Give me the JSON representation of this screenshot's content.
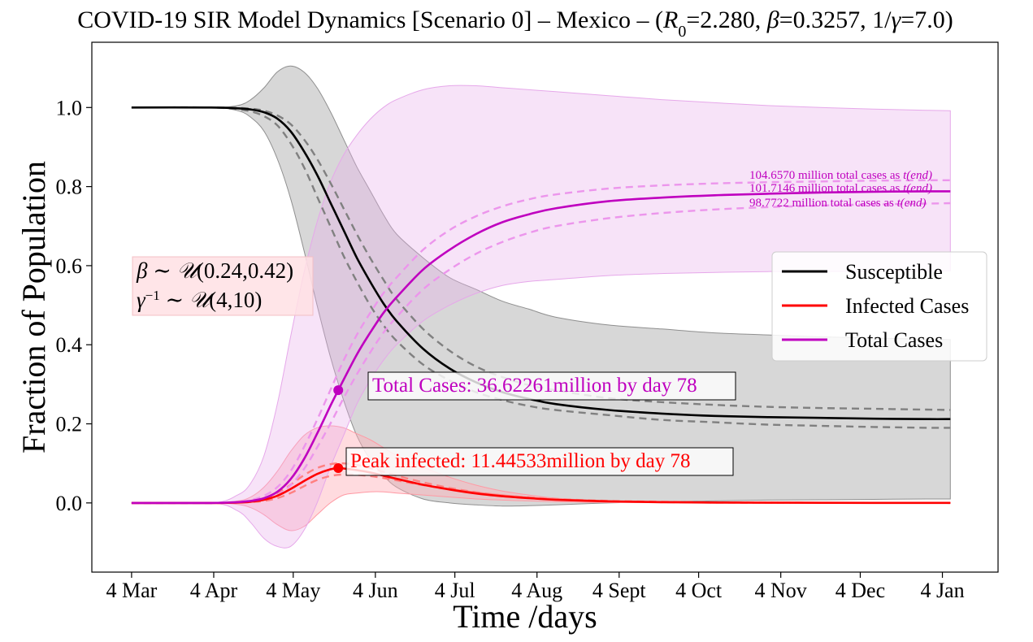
{
  "chart_data": {
    "type": "line",
    "title_parts": {
      "prefix": "COVID-19 SIR Model Dynamics [Scenario 0] – Mexico – (",
      "r0_symbol": "R",
      "r0_sub": "0",
      "r0_value": "=2.280, ",
      "beta_symbol": "β",
      "beta_value": "=0.3257, 1/",
      "gamma_symbol": "γ",
      "gamma_value": "=7.0)"
    },
    "xlabel": "Time /days",
    "ylabel": "Fraction of Population",
    "x_axis": {
      "ticks": [
        {
          "label": "4 Mar",
          "day": 0
        },
        {
          "label": "4 Apr",
          "day": 31
        },
        {
          "label": "4 May",
          "day": 61
        },
        {
          "label": "4 Jun",
          "day": 92
        },
        {
          "label": "4 Jul",
          "day": 122
        },
        {
          "label": "4 Aug",
          "day": 153
        },
        {
          "label": "4 Sept",
          "day": 184
        },
        {
          "label": "4 Oct",
          "day": 214
        },
        {
          "label": "4 Nov",
          "day": 245
        },
        {
          "label": "4 Dec",
          "day": 275
        },
        {
          "label": "4 Jan",
          "day": 306
        }
      ],
      "xlim": [
        -15,
        327
      ]
    },
    "y_axis": {
      "ticks": [
        "0.0",
        "0.2",
        "0.4",
        "0.6",
        "0.8",
        "1.0"
      ],
      "tick_values": [
        0,
        0.2,
        0.4,
        0.6,
        0.8,
        1.0
      ],
      "ylim": [
        -0.175,
        1.165
      ]
    },
    "grid": false,
    "legend": {
      "position": "center-right",
      "entries": [
        {
          "label": "Susceptible",
          "color": "#000000"
        },
        {
          "label": "Infected Cases",
          "color": "#ff0000"
        },
        {
          "label": "Total Cases",
          "color": "#bf00bf"
        }
      ]
    },
    "parameter_box": {
      "line1": {
        "sym": "β",
        "rest": " ∼ ",
        "dist": "𝒰",
        "args": "(0.24,0.42)"
      },
      "line2": {
        "sym": "γ",
        "sup": "−1",
        "rest": " ∼ ",
        "dist": "𝒰",
        "args": "(4,10)"
      }
    },
    "annotations": {
      "total_cases": {
        "text": "Total Cases: 36.62261million by day 78",
        "day": 78,
        "value": 0.285
      },
      "peak_infected": {
        "text": "Peak infected: 11.44533million by day 78",
        "day": 78,
        "value": 0.088
      },
      "end_totals": [
        {
          "text": "104.6570 million total cases as ",
          "tend": "t(end)",
          "value": 0.81
        },
        {
          "text": "101.7146 million total cases as ",
          "tend": "t(end)",
          "value": 0.785
        },
        {
          "text": "98.7722 million total cases as ",
          "tend": "t(end)",
          "value": 0.755
        }
      ]
    },
    "series": [
      {
        "name": "Susceptible",
        "color": "#000000",
        "kind": "main",
        "x": [
          0,
          30,
          40,
          45,
          50,
          55,
          60,
          65,
          70,
          75,
          80,
          85,
          90,
          95,
          100,
          110,
          120,
          130,
          140,
          150,
          160,
          180,
          200,
          220,
          240,
          260,
          280,
          300,
          309
        ],
        "y": [
          1.0,
          1.0,
          0.998,
          0.995,
          0.988,
          0.972,
          0.94,
          0.89,
          0.83,
          0.76,
          0.69,
          0.62,
          0.56,
          0.505,
          0.46,
          0.39,
          0.34,
          0.305,
          0.28,
          0.263,
          0.25,
          0.235,
          0.226,
          0.22,
          0.217,
          0.215,
          0.213,
          0.212,
          0.212
        ]
      },
      {
        "name": "",
        "color": "#808080",
        "kind": "dashed",
        "x": [
          0,
          30,
          40,
          45,
          50,
          55,
          60,
          65,
          70,
          75,
          80,
          85,
          90,
          95,
          100,
          110,
          120,
          130,
          140,
          150,
          160,
          180,
          200,
          220,
          240,
          260,
          280,
          300,
          309
        ],
        "y": [
          1.0,
          1.0,
          0.995,
          0.99,
          0.978,
          0.955,
          0.91,
          0.85,
          0.775,
          0.7,
          0.625,
          0.56,
          0.5,
          0.45,
          0.41,
          0.35,
          0.31,
          0.28,
          0.26,
          0.245,
          0.235,
          0.222,
          0.21,
          0.204,
          0.198,
          0.195,
          0.192,
          0.19,
          0.19
        ]
      },
      {
        "name": "",
        "color": "#808080",
        "kind": "dashed",
        "x": [
          0,
          30,
          40,
          45,
          50,
          55,
          60,
          65,
          70,
          75,
          80,
          85,
          90,
          95,
          100,
          110,
          120,
          130,
          140,
          150,
          160,
          180,
          200,
          220,
          240,
          260,
          280,
          300,
          309
        ],
        "y": [
          1.0,
          1.0,
          0.999,
          0.997,
          0.992,
          0.98,
          0.958,
          0.92,
          0.87,
          0.81,
          0.745,
          0.68,
          0.62,
          0.565,
          0.515,
          0.44,
          0.385,
          0.345,
          0.318,
          0.298,
          0.285,
          0.265,
          0.255,
          0.248,
          0.243,
          0.24,
          0.238,
          0.236,
          0.235
        ]
      },
      {
        "name": "Infected Cases",
        "color": "#ff0000",
        "kind": "main",
        "x": [
          0,
          30,
          40,
          45,
          50,
          55,
          60,
          65,
          70,
          75,
          78,
          80,
          85,
          90,
          95,
          100,
          110,
          120,
          130,
          140,
          150,
          160,
          180,
          200,
          220,
          250,
          280,
          309
        ],
        "y": [
          0,
          0,
          0.001,
          0.003,
          0.008,
          0.018,
          0.035,
          0.055,
          0.073,
          0.085,
          0.088,
          0.087,
          0.083,
          0.077,
          0.069,
          0.061,
          0.046,
          0.034,
          0.024,
          0.017,
          0.012,
          0.008,
          0.004,
          0.002,
          0.001,
          0.0005,
          0.0002,
          0.0001
        ]
      },
      {
        "name": "",
        "color": "#ff8080",
        "kind": "dashed",
        "x": [
          0,
          30,
          40,
          45,
          50,
          55,
          60,
          65,
          70,
          75,
          80,
          85,
          90,
          95,
          100,
          110,
          120,
          130,
          140,
          150,
          160,
          180,
          200,
          220,
          250,
          280,
          309
        ],
        "y": [
          0,
          0,
          0.0005,
          0.002,
          0.005,
          0.012,
          0.025,
          0.042,
          0.058,
          0.068,
          0.072,
          0.071,
          0.068,
          0.063,
          0.057,
          0.045,
          0.035,
          0.026,
          0.019,
          0.014,
          0.01,
          0.005,
          0.003,
          0.0015,
          0.0006,
          0.0002,
          0.0001
        ]
      },
      {
        "name": "",
        "color": "#ff8080",
        "kind": "dashed",
        "x": [
          0,
          30,
          40,
          45,
          50,
          55,
          60,
          65,
          70,
          75,
          80,
          85,
          90,
          95,
          100,
          110,
          120,
          130,
          140,
          150,
          160,
          180,
          200,
          220,
          250,
          280,
          309
        ],
        "y": [
          0,
          0,
          0.002,
          0.005,
          0.012,
          0.025,
          0.046,
          0.07,
          0.088,
          0.098,
          0.1,
          0.096,
          0.088,
          0.079,
          0.069,
          0.052,
          0.038,
          0.027,
          0.019,
          0.013,
          0.009,
          0.004,
          0.002,
          0.001,
          0.0004,
          0.0001,
          0.0
        ]
      },
      {
        "name": "Total Cases",
        "color": "#bf00bf",
        "kind": "main",
        "x": [
          0,
          30,
          40,
          45,
          50,
          55,
          60,
          65,
          70,
          75,
          78,
          85,
          90,
          95,
          100,
          110,
          120,
          130,
          140,
          150,
          160,
          180,
          200,
          220,
          240,
          260,
          280,
          300,
          309
        ],
        "y": [
          0,
          0,
          0.002,
          0.005,
          0.012,
          0.028,
          0.06,
          0.11,
          0.175,
          0.245,
          0.285,
          0.375,
          0.43,
          0.48,
          0.52,
          0.59,
          0.64,
          0.68,
          0.71,
          0.73,
          0.745,
          0.763,
          0.772,
          0.778,
          0.782,
          0.785,
          0.787,
          0.788,
          0.788
        ]
      },
      {
        "name": "",
        "color": "#ec96ec",
        "kind": "dashed",
        "x": [
          0,
          30,
          40,
          45,
          50,
          55,
          60,
          65,
          70,
          75,
          80,
          85,
          90,
          95,
          100,
          110,
          120,
          130,
          140,
          150,
          160,
          180,
          200,
          220,
          240,
          260,
          280,
          300,
          309
        ],
        "y": [
          0,
          0,
          0.001,
          0.003,
          0.008,
          0.02,
          0.045,
          0.085,
          0.14,
          0.2,
          0.265,
          0.325,
          0.38,
          0.43,
          0.47,
          0.54,
          0.59,
          0.63,
          0.66,
          0.683,
          0.7,
          0.72,
          0.733,
          0.742,
          0.748,
          0.752,
          0.755,
          0.757,
          0.758
        ]
      },
      {
        "name": "",
        "color": "#ec96ec",
        "kind": "dashed",
        "x": [
          0,
          30,
          40,
          45,
          50,
          55,
          60,
          65,
          70,
          75,
          80,
          85,
          90,
          95,
          100,
          110,
          120,
          130,
          140,
          150,
          160,
          180,
          200,
          220,
          240,
          260,
          280,
          300,
          309
        ],
        "y": [
          0,
          0,
          0.003,
          0.007,
          0.018,
          0.04,
          0.08,
          0.14,
          0.21,
          0.285,
          0.36,
          0.425,
          0.48,
          0.53,
          0.57,
          0.64,
          0.69,
          0.725,
          0.75,
          0.768,
          0.78,
          0.795,
          0.803,
          0.808,
          0.811,
          0.813,
          0.815,
          0.816,
          0.816
        ]
      }
    ],
    "bands": [
      {
        "name": "Susceptible",
        "fill": "#b0b0b0",
        "opacity": 0.5,
        "stroke": "#8f8f8f",
        "x": [
          0,
          30,
          40,
          45,
          50,
          55,
          60,
          65,
          70,
          75,
          80,
          85,
          90,
          95,
          100,
          110,
          120,
          130,
          140,
          150,
          160,
          180,
          200,
          220,
          240,
          260,
          280,
          300,
          309
        ],
        "upper": [
          1.0,
          1.0,
          1.005,
          1.02,
          1.05,
          1.09,
          1.105,
          1.09,
          1.05,
          0.99,
          0.92,
          0.85,
          0.79,
          0.73,
          0.68,
          0.62,
          0.57,
          0.54,
          0.51,
          0.49,
          0.47,
          0.45,
          0.44,
          0.43,
          0.425,
          0.42,
          0.417,
          0.414,
          0.413
        ],
        "lower": [
          1.0,
          1.0,
          0.992,
          0.975,
          0.94,
          0.87,
          0.77,
          0.64,
          0.5,
          0.37,
          0.26,
          0.17,
          0.11,
          0.07,
          0.04,
          0.01,
          0.0,
          -0.005,
          -0.008,
          -0.007,
          -0.005,
          0.0,
          0.003,
          0.005,
          0.007,
          0.008,
          0.009,
          0.01,
          0.01
        ]
      },
      {
        "name": "Infected Cases",
        "fill": "#ffb0b8",
        "opacity": 0.45,
        "stroke": "#ff9aa4",
        "x": [
          0,
          30,
          40,
          45,
          50,
          55,
          60,
          65,
          70,
          75,
          80,
          85,
          90,
          95,
          100,
          110,
          120,
          130,
          140,
          150,
          160,
          180,
          200,
          220,
          250,
          280,
          309
        ],
        "upper": [
          0,
          0,
          0.005,
          0.015,
          0.04,
          0.08,
          0.13,
          0.17,
          0.19,
          0.195,
          0.19,
          0.175,
          0.16,
          0.14,
          0.12,
          0.09,
          0.065,
          0.045,
          0.03,
          0.02,
          0.012,
          0.005,
          0.002,
          0.001,
          0.0005,
          0.0002,
          0.0001
        ],
        "lower": [
          0,
          0,
          -0.004,
          -0.012,
          -0.03,
          -0.055,
          -0.07,
          -0.06,
          -0.03,
          0.0,
          0.02,
          0.025,
          0.028,
          0.028,
          0.025,
          0.02,
          0.015,
          0.01,
          0.007,
          0.005,
          0.003,
          0.001,
          0.0005,
          0.0002,
          0.0001,
          0.0,
          0.0
        ]
      },
      {
        "name": "Total Cases",
        "fill": "#e7b0ea",
        "opacity": 0.35,
        "stroke": "#e6a8ea",
        "x": [
          0,
          30,
          40,
          45,
          50,
          55,
          60,
          65,
          70,
          75,
          80,
          85,
          90,
          95,
          100,
          110,
          120,
          130,
          140,
          150,
          160,
          180,
          200,
          220,
          240,
          260,
          280,
          300,
          309
        ],
        "upper": [
          0,
          0,
          0.02,
          0.05,
          0.12,
          0.25,
          0.42,
          0.58,
          0.71,
          0.81,
          0.88,
          0.93,
          0.97,
          1.0,
          1.02,
          1.045,
          1.055,
          1.055,
          1.05,
          1.045,
          1.04,
          1.03,
          1.02,
          1.012,
          1.005,
          1.0,
          0.996,
          0.993,
          0.992
        ],
        "lower": [
          0,
          0,
          -0.02,
          -0.05,
          -0.09,
          -0.11,
          -0.11,
          -0.07,
          0.0,
          0.09,
          0.17,
          0.25,
          0.31,
          0.36,
          0.4,
          0.46,
          0.5,
          0.53,
          0.55,
          0.56,
          0.565,
          0.575,
          0.58,
          0.583,
          0.585,
          0.585,
          0.586,
          0.586,
          0.587
        ]
      }
    ]
  }
}
